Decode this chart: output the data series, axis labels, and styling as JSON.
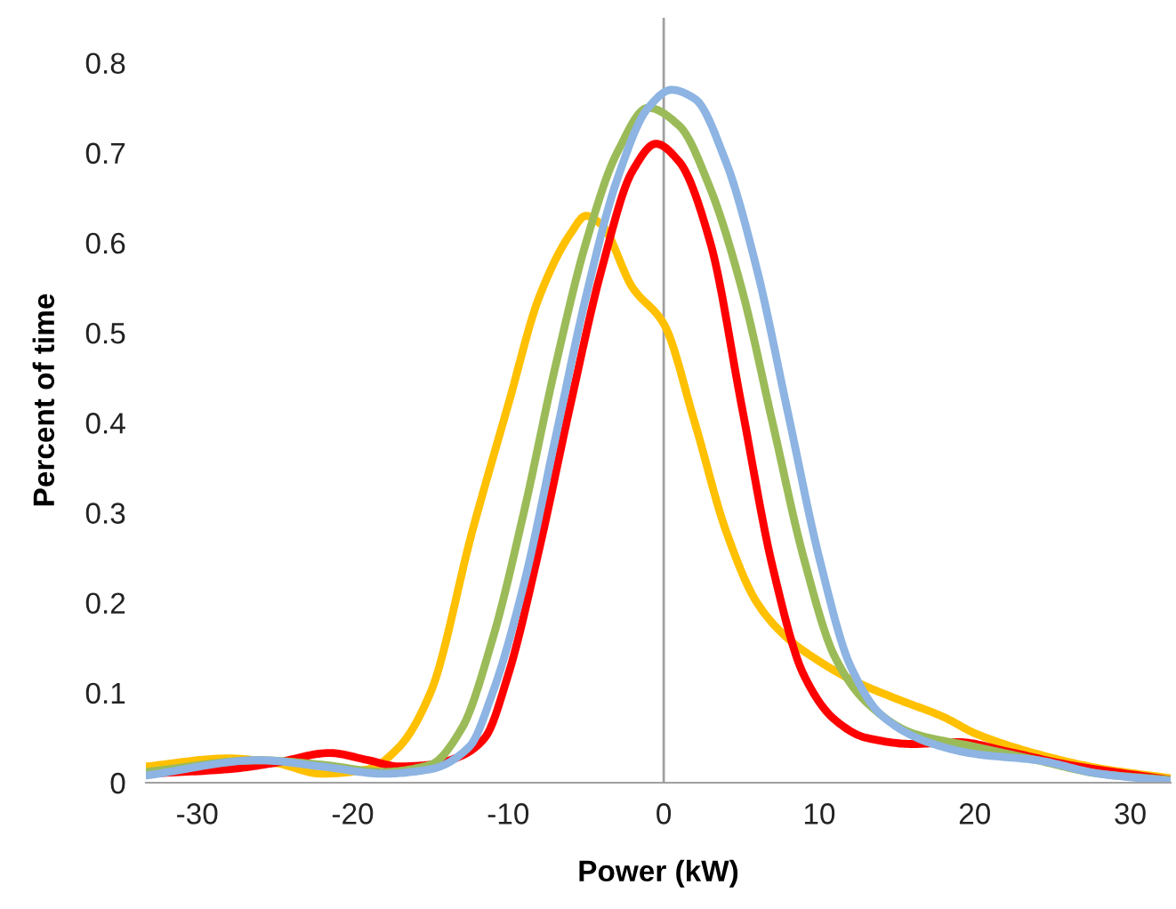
{
  "chart_data": {
    "type": "line",
    "xlabel": "Power (kW)",
    "ylabel": "Percent of time",
    "xlim": [
      -33.3,
      32.6
    ],
    "xticks": [
      -30,
      -20,
      -10,
      0,
      10,
      20,
      30
    ],
    "ylim": [
      0,
      0.85
    ],
    "yticks": [
      0,
      0.1,
      0.2,
      0.3,
      0.4,
      0.5,
      0.6,
      0.7,
      0.8
    ],
    "grid": false,
    "marker": "none",
    "line_style": "solid",
    "ref_lines": [
      {
        "axis": "x",
        "value": 0,
        "color": "#a0a0a0"
      }
    ],
    "series": [
      {
        "color": "#ffc000",
        "x": [
          -33.3,
          -28,
          -25,
          -22,
          -19,
          -17,
          -15,
          -12.3,
          -10,
          -8,
          -6,
          -5,
          -4,
          -2,
          0,
          2,
          4,
          6,
          8,
          10,
          12,
          15,
          18,
          20,
          24,
          28,
          32.6
        ],
        "values": [
          0.018,
          0.027,
          0.022,
          0.01,
          0.015,
          0.04,
          0.1,
          0.28,
          0.42,
          0.54,
          0.61,
          0.63,
          0.62,
          0.55,
          0.51,
          0.4,
          0.28,
          0.2,
          0.16,
          0.135,
          0.115,
          0.093,
          0.073,
          0.055,
          0.032,
          0.016,
          0.005
        ]
      },
      {
        "color": "#ff0000",
        "x": [
          -33.3,
          -28,
          -25,
          -21.5,
          -19,
          -17,
          -15,
          -13,
          -11.5,
          -10,
          -8,
          -6,
          -4,
          -2,
          -0.5,
          1,
          3,
          5,
          7,
          9,
          11,
          13,
          16,
          19,
          22,
          26,
          32.6
        ],
        "values": [
          0.01,
          0.015,
          0.022,
          0.033,
          0.025,
          0.018,
          0.02,
          0.03,
          0.05,
          0.12,
          0.26,
          0.42,
          0.57,
          0.68,
          0.71,
          0.69,
          0.6,
          0.42,
          0.24,
          0.12,
          0.07,
          0.05,
          0.043,
          0.045,
          0.035,
          0.02,
          0.003
        ]
      },
      {
        "color": "#9bbb59",
        "x": [
          -33.3,
          -26,
          -22,
          -18,
          -15,
          -13,
          -11,
          -9,
          -7,
          -5,
          -3,
          -1,
          1,
          3,
          5,
          7,
          9,
          11,
          13,
          16,
          20,
          24,
          28,
          32.6
        ],
        "values": [
          0.012,
          0.025,
          0.02,
          0.012,
          0.02,
          0.06,
          0.16,
          0.3,
          0.46,
          0.6,
          0.7,
          0.75,
          0.73,
          0.66,
          0.55,
          0.4,
          0.25,
          0.14,
          0.09,
          0.055,
          0.04,
          0.025,
          0.01,
          0.003
        ]
      },
      {
        "color": "#8db4e2",
        "x": [
          -33.3,
          -26,
          -22,
          -18,
          -15,
          -12.5,
          -11,
          -9,
          -7,
          -5,
          -3,
          -1,
          0.5,
          2,
          4,
          6,
          8,
          10,
          12,
          14,
          17,
          20,
          24,
          28,
          32.6
        ],
        "values": [
          0.008,
          0.025,
          0.018,
          0.01,
          0.015,
          0.04,
          0.1,
          0.22,
          0.38,
          0.54,
          0.67,
          0.75,
          0.77,
          0.76,
          0.69,
          0.57,
          0.41,
          0.25,
          0.13,
          0.075,
          0.045,
          0.032,
          0.025,
          0.01,
          0.002
        ]
      }
    ]
  }
}
